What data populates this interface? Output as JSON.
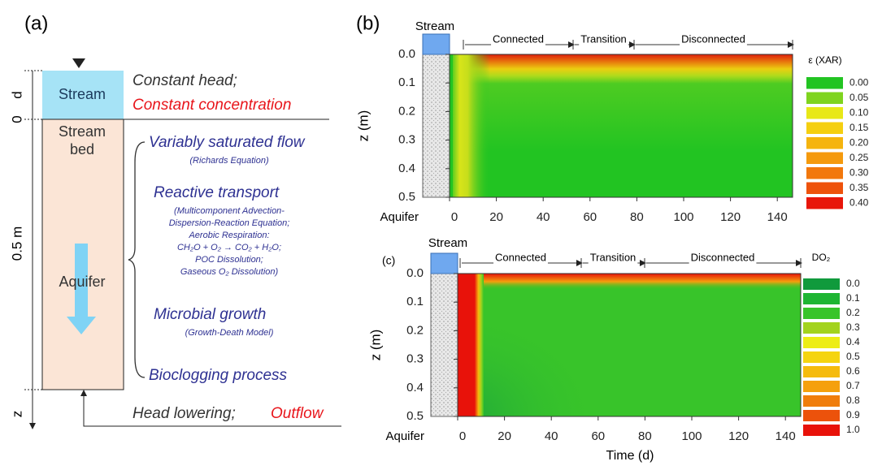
{
  "panel_a": {
    "label": "(a)",
    "stream": "Stream",
    "stream_bed": [
      "Stream",
      "bed"
    ],
    "aquifer": "Aquifer",
    "dim_d": "d",
    "dim_zero": "0",
    "dim_depth": "0.5 m",
    "z": "z",
    "constant_head": "Constant head;",
    "constant_concentration": "Constant concentration",
    "processes": [
      {
        "title": "Variably saturated flow",
        "details": [
          "(Richards Equation)"
        ]
      },
      {
        "title": "Reactive transport",
        "details": [
          "(Multicomponent Advection-",
          "Dispersion-Reaction Equation;",
          "Aerobic Respiration:",
          "CH₂O + O₂ → CO₂ + H₂O;",
          "POC Dissolution;",
          "Gaseous O₂ Dissolution)"
        ]
      },
      {
        "title": "Microbial growth",
        "details": [
          "(Growth-Death Model)"
        ]
      },
      {
        "title": "Bioclogging process",
        "details": []
      }
    ],
    "head_lowering": "Head  lowering;",
    "outflow": "Outflow"
  },
  "panel_b": {
    "label": "(b)",
    "stream": "Stream",
    "aquifer": "Aquifer",
    "phases": [
      "Connected",
      "Transition",
      "Disconnected"
    ],
    "ylabel": "z (m)",
    "yticks": [
      "0.0",
      "0.1",
      "0.2",
      "0.3",
      "0.4",
      "0.5"
    ],
    "xticks": [
      "0",
      "20",
      "40",
      "60",
      "80",
      "100",
      "120",
      "140"
    ],
    "legend_title": "ε (XAR)",
    "legend_levels": [
      "0.00",
      "0.05",
      "0.10",
      "0.15",
      "0.20",
      "0.25",
      "0.30",
      "0.35",
      "0.40"
    ],
    "legend_colors": [
      "#22c422",
      "#7fd41f",
      "#e8e817",
      "#f5cf10",
      "#f5b40e",
      "#f59a0d",
      "#f2780c",
      "#ee520b",
      "#e8160a"
    ]
  },
  "panel_c": {
    "label": "(c)",
    "stream": "Stream",
    "aquifer": "Aquifer",
    "phases": [
      "Connected",
      "Transition",
      "Disconnected"
    ],
    "ylabel": "z (m)",
    "xlabel": "Time (d)",
    "yticks": [
      "0.0",
      "0.1",
      "0.2",
      "0.3",
      "0.4",
      "0.5"
    ],
    "xticks": [
      "0",
      "20",
      "40",
      "60",
      "80",
      "100",
      "120",
      "140"
    ],
    "legend_title": "DO₂",
    "legend_levels": [
      "0.0",
      "0.1",
      "0.2",
      "0.3",
      "0.4",
      "0.5",
      "0.6",
      "0.7",
      "0.8",
      "0.9",
      "1.0"
    ],
    "legend_colors": [
      "#109a3c",
      "#1fb533",
      "#38c42a",
      "#a3d31e",
      "#eded15",
      "#f5d410",
      "#f5bb0e",
      "#f5a00d",
      "#f07d0c",
      "#ec520b",
      "#e8120a"
    ]
  }
}
